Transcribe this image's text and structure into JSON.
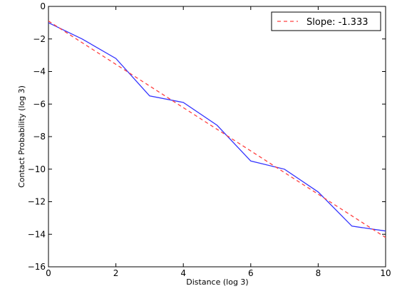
{
  "chart_data": {
    "type": "line",
    "xlabel": "Distance (log 3)",
    "ylabel": "Contact Probability (log 3)",
    "xlim": [
      0,
      10
    ],
    "ylim": [
      -16,
      0
    ],
    "xticks": [
      0,
      2,
      4,
      6,
      8,
      10
    ],
    "yticks": [
      0,
      -2,
      -4,
      -6,
      -8,
      -10,
      -12,
      -14,
      -16
    ],
    "grid": false,
    "legend_placement": "top-right",
    "series": [
      {
        "style": "solid",
        "color": "#3333ff",
        "x": [
          0,
          1,
          2,
          3,
          4,
          5,
          6,
          7,
          8,
          9,
          10
        ],
        "y": [
          -1.0,
          -2.0,
          -3.2,
          -5.5,
          -5.9,
          -7.3,
          -9.5,
          -10.0,
          -11.4,
          -13.5,
          -13.8
        ]
      },
      {
        "name": "Slope: -1.333",
        "style": "dashed",
        "color": "#ff4040",
        "x": [
          0,
          10
        ],
        "y": [
          -0.9,
          -14.2
        ]
      }
    ]
  }
}
